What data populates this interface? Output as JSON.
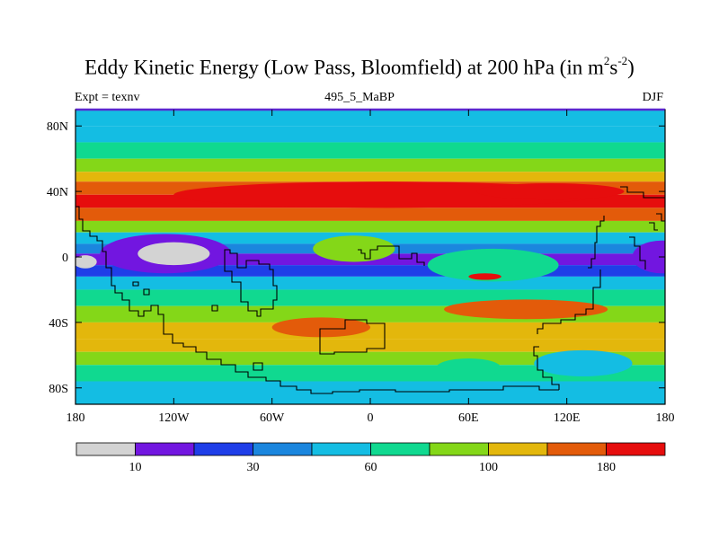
{
  "chart_data": {
    "type": "heatmap",
    "title_main": "Eddy Kinetic Energy (Low Pass, Bloomfield) at 200 hPa (in m",
    "title_sup1": "2",
    "title_mid": "s",
    "title_sup2": "-2",
    "title_end": ")",
    "subtitle": "495_5_MaBP",
    "left_label": "Expt = texnv",
    "right_label": "DJF",
    "x_ticks": [
      {
        "lon": -180,
        "label": "180"
      },
      {
        "lon": -120,
        "label": "120W"
      },
      {
        "lon": -60,
        "label": "60W"
      },
      {
        "lon": 0,
        "label": "0"
      },
      {
        "lon": 60,
        "label": "60E"
      },
      {
        "lon": 120,
        "label": "120E"
      },
      {
        "lon": 180,
        "label": "180"
      }
    ],
    "y_ticks": [
      {
        "lat": 80,
        "label": "80N"
      },
      {
        "lat": 40,
        "label": "40N"
      },
      {
        "lat": 0,
        "label": "0"
      },
      {
        "lat": -40,
        "label": "40S"
      },
      {
        "lat": -80,
        "label": "80S"
      }
    ],
    "xlim": [
      -180,
      180
    ],
    "ylim": [
      -90,
      90
    ],
    "colorbar": {
      "colors": [
        "#d3d3d3",
        "#7216e0",
        "#1f3ee8",
        "#1b86de",
        "#14bde3",
        "#10d990",
        "#84d718",
        "#e3b70c",
        "#e35b0a",
        "#e60d0d"
      ],
      "labels": [
        {
          "boundary": 1,
          "label": "10"
        },
        {
          "boundary": 3,
          "label": "30"
        },
        {
          "boundary": 5,
          "label": "60"
        },
        {
          "boundary": 7,
          "label": "100"
        },
        {
          "boundary": 9,
          "label": "180"
        }
      ]
    },
    "bands": [
      {
        "lat": 90,
        "cls": 4
      },
      {
        "lat": 80,
        "cls": 4
      },
      {
        "lat": 70,
        "cls": 5
      },
      {
        "lat": 60,
        "cls": 6
      },
      {
        "lat": 52,
        "cls": 7
      },
      {
        "lat": 46,
        "cls": 8
      },
      {
        "lat": 38,
        "cls": 9
      },
      {
        "lat": 30,
        "cls": 8
      },
      {
        "lat": 22,
        "cls": 6
      },
      {
        "lat": 15,
        "cls": 4
      },
      {
        "lat": 8,
        "cls": 3
      },
      {
        "lat": 2,
        "cls": 1
      },
      {
        "lat": -5,
        "cls": 2
      },
      {
        "lat": -12,
        "cls": 4
      },
      {
        "lat": -20,
        "cls": 5
      },
      {
        "lat": -30,
        "cls": 6
      },
      {
        "lat": -40,
        "cls": 7
      },
      {
        "lat": -50,
        "cls": 7
      },
      {
        "lat": -58,
        "cls": 6
      },
      {
        "lat": -66,
        "cls": 5
      },
      {
        "lat": -76,
        "cls": 4
      },
      {
        "lat": -90,
        "cls": 4
      }
    ],
    "features": [
      {
        "name": "zonal-band-40n-max",
        "lon": 10,
        "lat": 38,
        "rx": 130,
        "ry": 8,
        "cls": 9
      },
      {
        "name": "pacific-band-40n-max",
        "lon": 110,
        "lat": 40,
        "rx": 45,
        "ry": 5,
        "cls": 9
      },
      {
        "name": "pacific-equatorial-min",
        "lon": -125,
        "lat": 2,
        "rx": 40,
        "ry": 12,
        "cls": 1
      },
      {
        "name": "pacific-equatorial-core",
        "lon": -120,
        "lat": 2,
        "rx": 22,
        "ry": 7,
        "cls": 0
      },
      {
        "name": "dateline-equatorial-min",
        "lon": 178,
        "lat": 0,
        "rx": 18,
        "ry": 10,
        "cls": 1
      },
      {
        "name": "dateline-core-west",
        "lon": -174,
        "lat": -3,
        "rx": 7,
        "ry": 4,
        "cls": 0
      },
      {
        "name": "indian-ocean-low",
        "lon": 75,
        "lat": -5,
        "rx": 40,
        "ry": 10,
        "cls": 5
      },
      {
        "name": "atlantic-equatorial-high",
        "lon": -10,
        "lat": 5,
        "rx": 25,
        "ry": 8,
        "cls": 6
      },
      {
        "name": "south-indian-jet",
        "lon": 95,
        "lat": -32,
        "rx": 50,
        "ry": 6,
        "cls": 8
      },
      {
        "name": "south-indian-core",
        "lon": 70,
        "lat": -12,
        "rx": 10,
        "ry": 2,
        "cls": 9
      },
      {
        "name": "south-atlantic-jet",
        "lon": -30,
        "lat": -43,
        "rx": 30,
        "ry": 6,
        "cls": 8
      },
      {
        "name": "antarctic-low-1",
        "lon": 130,
        "lat": -65,
        "rx": 30,
        "ry": 8,
        "cls": 4
      },
      {
        "name": "antarctic-low-2",
        "lon": 60,
        "lat": -68,
        "rx": 20,
        "ry": 6,
        "cls": 5
      }
    ]
  }
}
